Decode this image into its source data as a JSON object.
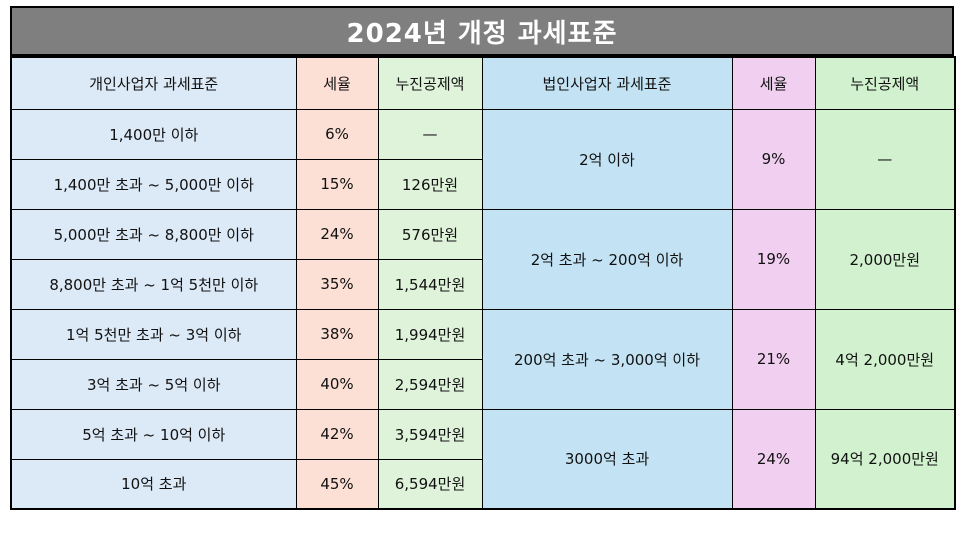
{
  "title": "2024년 개정 과세표준",
  "headers": {
    "personal_bracket": "개인사업자 과세표준",
    "personal_rate": "세율",
    "personal_deduction": "누진공제액",
    "corporate_bracket": "법인사업자 과세표준",
    "corporate_rate": "세율",
    "corporate_deduction": "누진공제액"
  },
  "personal": [
    {
      "bracket": "1,400만 이하",
      "rate": "6%",
      "deduction": "—"
    },
    {
      "bracket": "1,400만 초과 ~ 5,000만 이하",
      "rate": "15%",
      "deduction": "126만원"
    },
    {
      "bracket": "5,000만 초과 ~ 8,800만 이하",
      "rate": "24%",
      "deduction": "576만원"
    },
    {
      "bracket": "8,800만 초과 ~ 1억 5천만 이하",
      "rate": "35%",
      "deduction": "1,544만원"
    },
    {
      "bracket": "1억 5천만 초과 ~ 3억 이하",
      "rate": "38%",
      "deduction": "1,994만원"
    },
    {
      "bracket": "3억 초과 ~ 5억 이하",
      "rate": "40%",
      "deduction": "2,594만원"
    },
    {
      "bracket": "5억 초과 ~ 10억 이하",
      "rate": "42%",
      "deduction": "3,594만원"
    },
    {
      "bracket": "10억 초과",
      "rate": "45%",
      "deduction": "6,594만원"
    }
  ],
  "corporate": [
    {
      "bracket": "2억 이하",
      "rate": "9%",
      "deduction": "—"
    },
    {
      "bracket": "2억 초과 ~ 200억 이하",
      "rate": "19%",
      "deduction": "2,000만원"
    },
    {
      "bracket": "200억 초과 ~ 3,000억 이하",
      "rate": "21%",
      "deduction": "4억 2,000만원"
    },
    {
      "bracket": "3000억 초과",
      "rate": "24%",
      "deduction": "94억 2,000만원"
    }
  ],
  "colors": {
    "title_bg": "#7f7f7f",
    "personal_bracket_bg": "#dce9f7",
    "personal_rate_bg": "#fce0d6",
    "personal_deduction_bg": "#dff3da",
    "corporate_bracket_bg": "#c3e3f5",
    "corporate_rate_bg": "#f1cff0",
    "corporate_deduction_bg": "#d2f2cf"
  }
}
